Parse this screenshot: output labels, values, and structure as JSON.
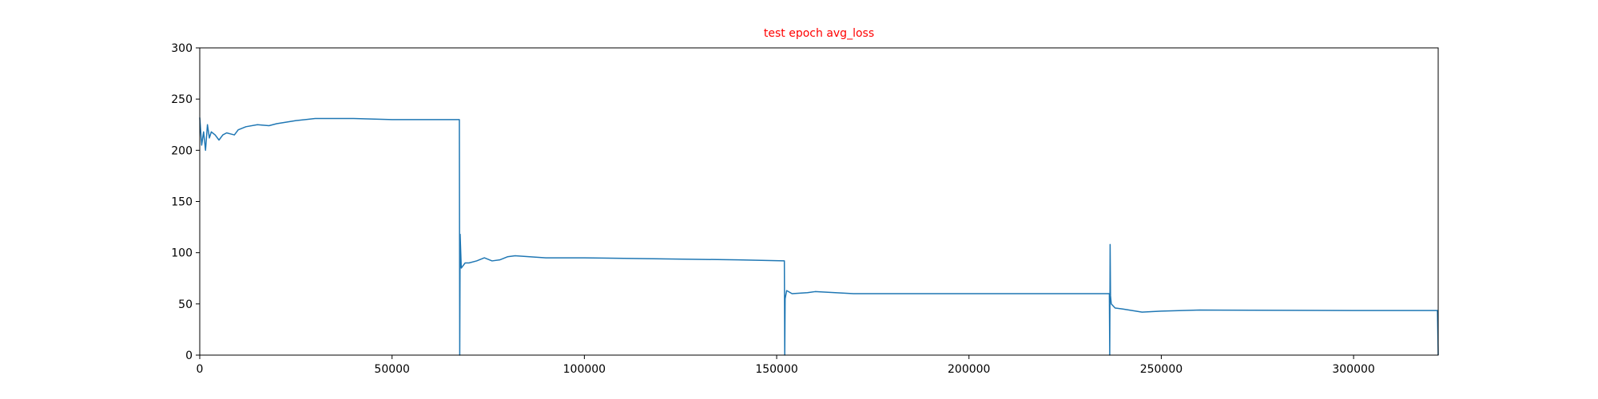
{
  "chart_data": {
    "type": "line",
    "title": "test epoch avg_loss",
    "title_color": "#ff0000",
    "x": [
      0,
      500,
      1000,
      1500,
      2000,
      2500,
      3000,
      4000,
      5000,
      6000,
      7000,
      8000,
      9000,
      10000,
      12000,
      15000,
      18000,
      20000,
      25000,
      30000,
      40000,
      50000,
      60000,
      67500,
      67600,
      67700,
      68000,
      69000,
      70000,
      72000,
      74000,
      76000,
      78000,
      80000,
      82000,
      90000,
      100000,
      120000,
      140000,
      152000,
      152100,
      152200,
      152600,
      154000,
      158000,
      160000,
      170000,
      200000,
      236500,
      236600,
      236700,
      236800,
      237000,
      238000,
      240000,
      245000,
      250000,
      260000,
      300000,
      321800,
      322000
    ],
    "series": [
      {
        "name": "avg_loss",
        "color": "#1f77b4",
        "values": [
          232,
          205,
          218,
          200,
          225,
          212,
          218,
          215,
          210,
          215,
          217,
          216,
          215,
          220,
          223,
          225,
          224,
          226,
          229,
          231,
          231,
          230,
          230,
          230,
          0,
          118,
          85,
          90,
          90,
          92,
          95,
          92,
          93,
          96,
          97,
          95,
          95,
          94,
          93,
          92,
          0,
          55,
          63,
          60,
          61,
          62,
          60,
          60,
          60,
          0,
          108,
          58,
          50,
          46,
          45,
          42,
          43,
          44,
          43.5,
          43.5,
          0
        ]
      }
    ],
    "xlim": [
      0,
      322000
    ],
    "ylim": [
      0,
      300
    ],
    "xticks": [
      0,
      50000,
      100000,
      150000,
      200000,
      250000,
      300000
    ],
    "yticks": [
      0,
      50,
      100,
      150,
      200,
      250,
      300
    ]
  }
}
